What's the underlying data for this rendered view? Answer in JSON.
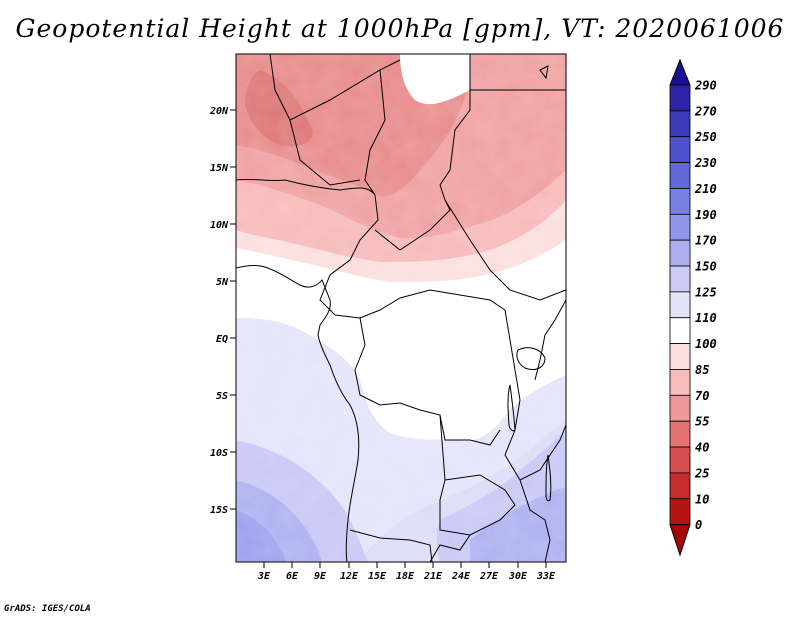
{
  "title": "Geopotential Height at 1000hPa [gpm], VT: 2020061006",
  "credit": "GrADS: IGES/COLA",
  "map": {
    "lat_labels": [
      "20N",
      "15N",
      "10N",
      "5N",
      "EQ",
      "5S",
      "10S",
      "15S"
    ],
    "lon_labels": [
      "3E",
      "6E",
      "9E",
      "12E",
      "15E",
      "18E",
      "21E",
      "24E",
      "27E",
      "30E",
      "33E"
    ]
  },
  "colorbar": {
    "levels": [
      "290",
      "270",
      "250",
      "230",
      "210",
      "190",
      "170",
      "150",
      "125",
      "110",
      "100",
      "85",
      "70",
      "55",
      "40",
      "25",
      "10",
      "0"
    ],
    "colors": [
      "#1a0f8c",
      "#2b24a6",
      "#3d3bbb",
      "#4f52cb",
      "#6268d8",
      "#787fe3",
      "#9096ec",
      "#abafef",
      "#c9cbf5",
      "#e3e4fa",
      "#ffffff",
      "#fcdede",
      "#f7bcbc",
      "#f09898",
      "#e47272",
      "#d64e4e",
      "#c52d2d",
      "#b51414",
      "#a80606"
    ]
  }
}
